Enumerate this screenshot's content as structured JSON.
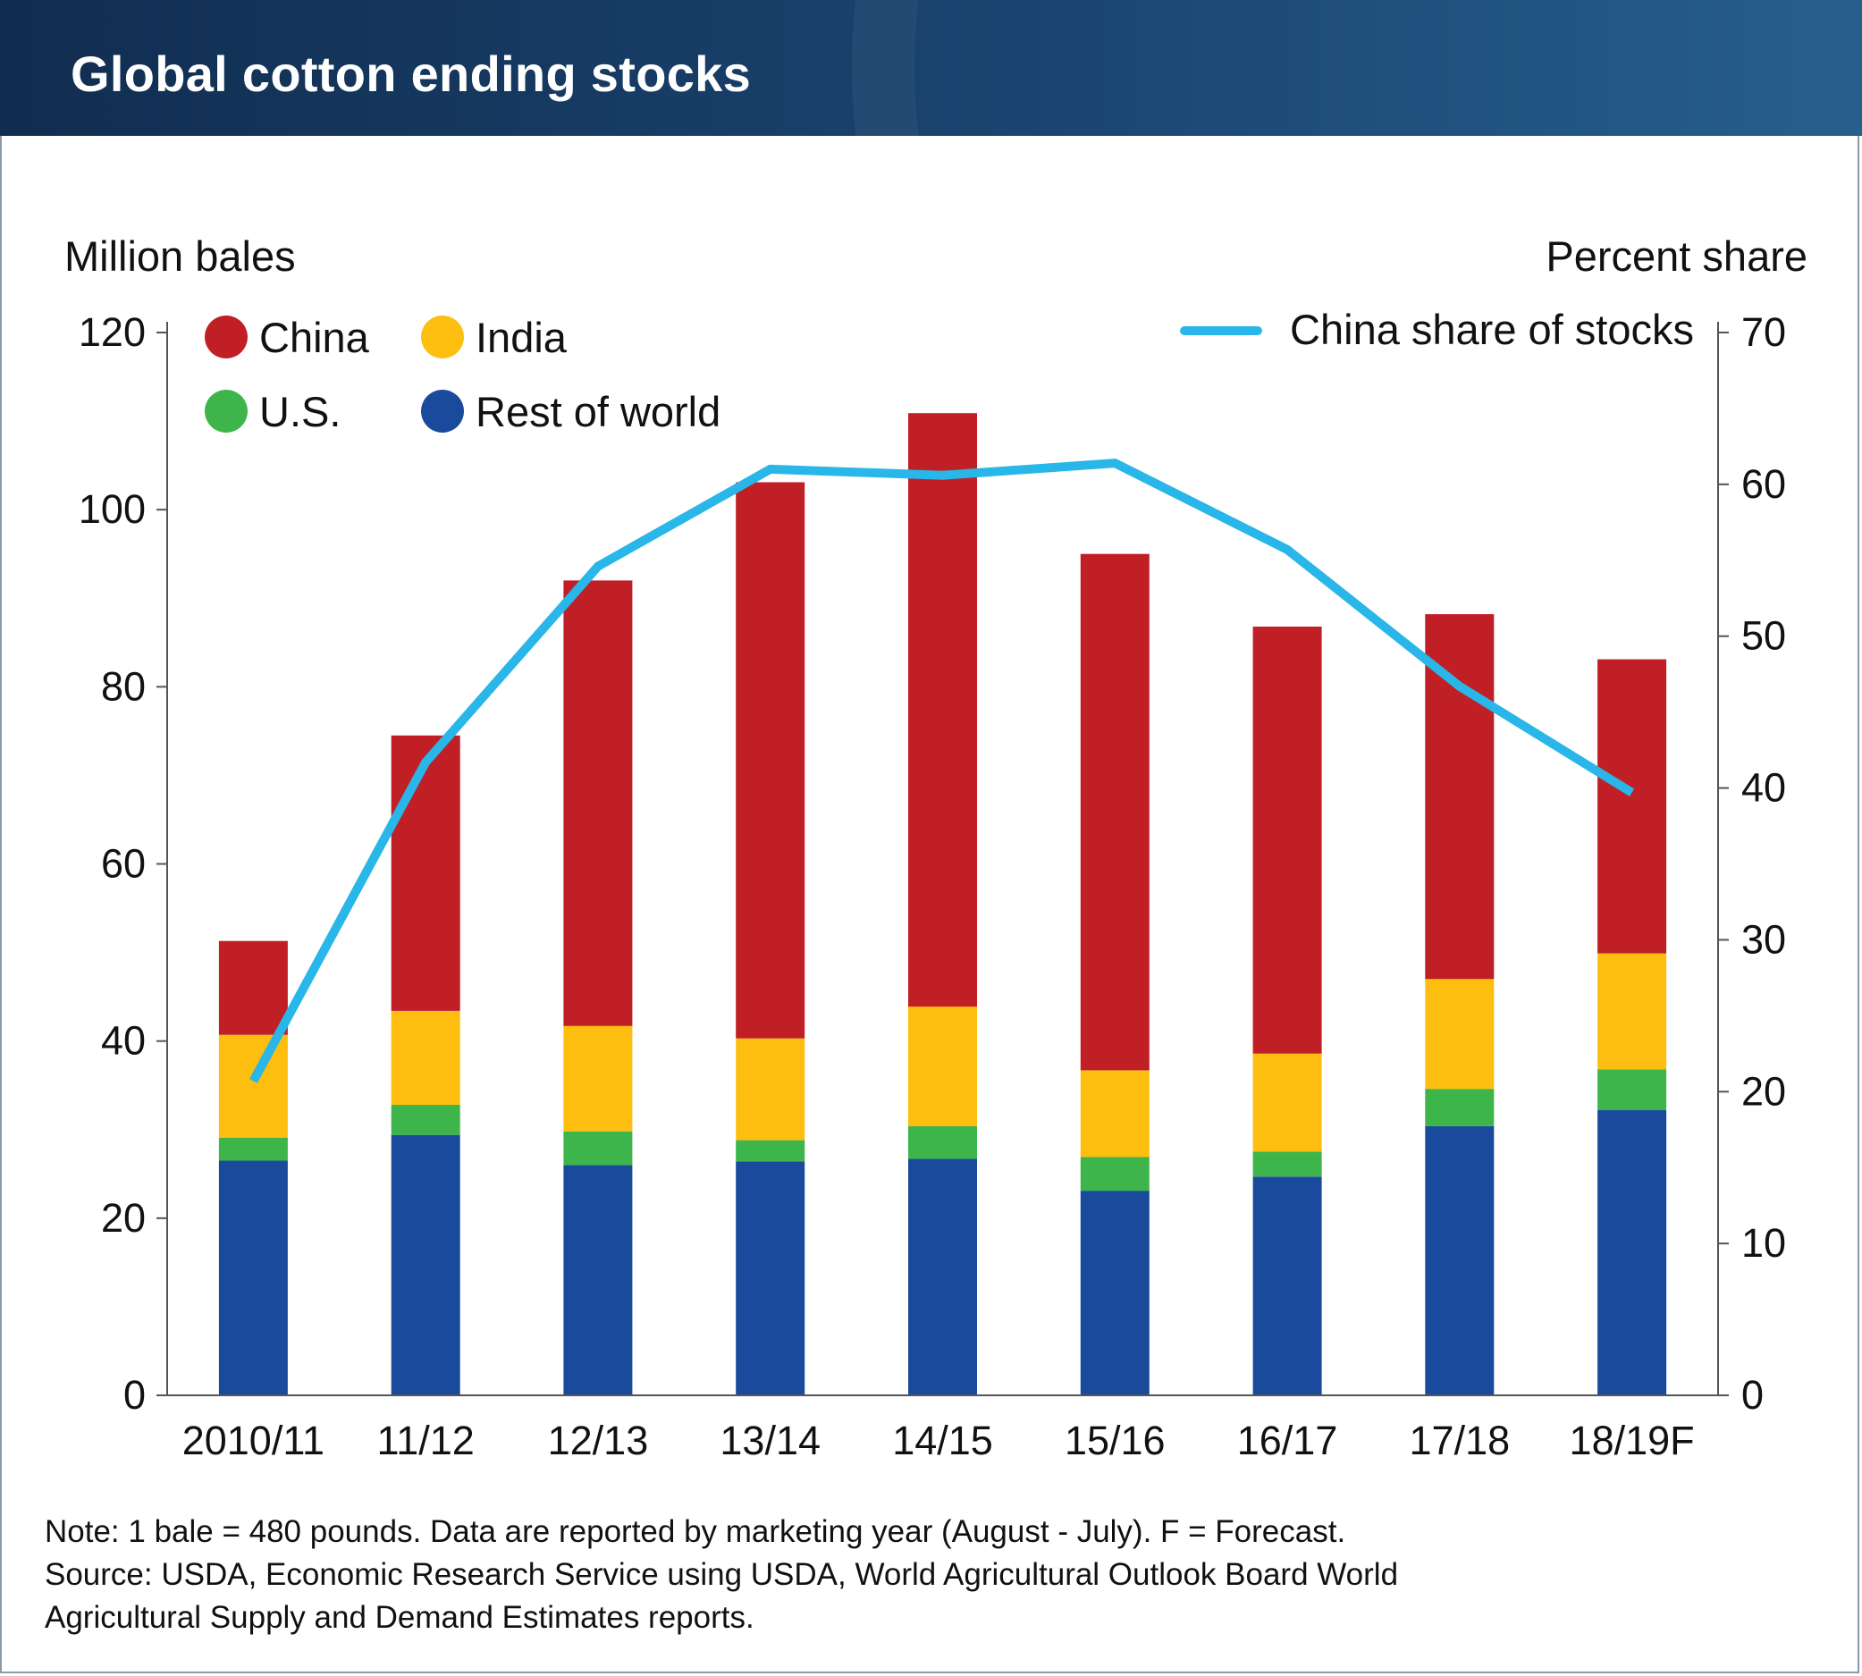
{
  "header": {
    "title": "Global cotton ending stocks"
  },
  "chart_data": {
    "type": "bar",
    "subtype": "stacked bar with line on secondary axis",
    "categories": [
      "2010/11",
      "11/12",
      "12/13",
      "13/14",
      "14/15",
      "15/16",
      "16/17",
      "17/18",
      "18/19F"
    ],
    "ylabel_left": "Million bales",
    "ylabel_right": "Percent share",
    "ylim_left": [
      0,
      120
    ],
    "ylim_right": [
      0,
      70
    ],
    "yticks_left": [
      0,
      20,
      40,
      60,
      80,
      100,
      120
    ],
    "yticks_right": [
      0,
      10,
      20,
      30,
      40,
      50,
      60,
      70
    ],
    "legend_placement": "top-left (bars), top-right (line)",
    "grid": false,
    "series": [
      {
        "name": "Rest of world",
        "color": "#1a4a9c",
        "axis": "left",
        "values": [
          26.5,
          29.4,
          26.0,
          26.4,
          26.7,
          23.1,
          24.7,
          30.4,
          32.2
        ]
      },
      {
        "name": "U.S.",
        "color": "#3db54a",
        "axis": "left",
        "values": [
          2.6,
          3.4,
          3.8,
          2.4,
          3.7,
          3.8,
          2.8,
          4.2,
          4.6
        ]
      },
      {
        "name": "India",
        "color": "#fdbe10",
        "axis": "left",
        "values": [
          11.6,
          10.6,
          11.9,
          11.5,
          13.5,
          9.8,
          11.1,
          12.4,
          13.1
        ]
      },
      {
        "name": "China",
        "color": "#c01f26",
        "axis": "left",
        "values": [
          10.6,
          31.1,
          50.3,
          62.8,
          67.0,
          58.3,
          48.2,
          41.2,
          33.2
        ]
      },
      {
        "name": "China share of stocks",
        "type": "line",
        "color": "#29b6e8",
        "axis": "right",
        "values": [
          20.7,
          41.7,
          54.6,
          61.0,
          60.6,
          61.4,
          55.7,
          46.7,
          39.7
        ]
      }
    ],
    "legend_order": [
      "China",
      "India",
      "U.S.",
      "Rest of world",
      "China share of stocks"
    ]
  },
  "notes": {
    "line1": "Note: 1 bale = 480 pounds. Data are reported by marketing year (August - July). F = Forecast.",
    "line2": "Source: USDA, Economic Research Service using USDA, World Agricultural Outlook Board World",
    "line3": "Agricultural Supply and Demand Estimates reports."
  }
}
